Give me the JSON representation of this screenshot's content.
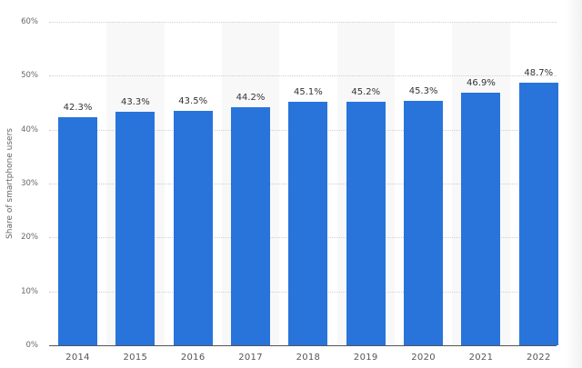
{
  "chart_data": {
    "type": "bar",
    "title": "",
    "xlabel": "",
    "ylabel": "Share of smartphone users",
    "categories": [
      "2014",
      "2015",
      "2016",
      "2017",
      "2018",
      "2019",
      "2020",
      "2021",
      "2022"
    ],
    "values": [
      42.3,
      43.3,
      43.5,
      44.2,
      45.1,
      45.2,
      45.3,
      46.9,
      48.7
    ],
    "value_labels": [
      "42.3%",
      "43.3%",
      "43.5%",
      "44.2%",
      "45.1%",
      "45.2%",
      "45.3%",
      "46.9%",
      "48.7%"
    ],
    "ylim": [
      0,
      60
    ],
    "yticks": [
      0,
      10,
      20,
      30,
      40,
      50,
      60
    ],
    "ytick_labels": [
      "0%",
      "10%",
      "20%",
      "30%",
      "40%",
      "50%",
      "60%"
    ],
    "grid": true,
    "legend": null,
    "bar_color": "#2874db",
    "band_color": "#f8f8f8"
  }
}
